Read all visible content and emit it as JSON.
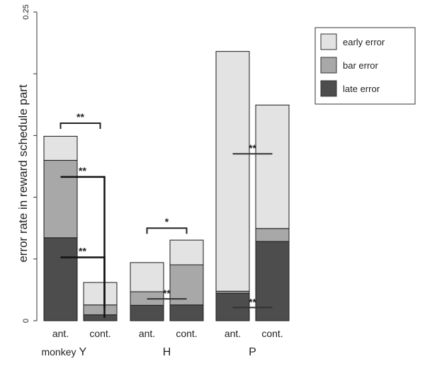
{
  "chart_data": {
    "type": "bar",
    "ylabel": "error rate in reward schedule part",
    "ylim": [
      0,
      0.25
    ],
    "ytick_labels": [
      "0",
      "0.25"
    ],
    "groups": [
      {
        "prefix": "monkey",
        "name": "Y"
      },
      {
        "prefix": "",
        "name": "H"
      },
      {
        "prefix": "",
        "name": "P"
      }
    ],
    "bars": [
      {
        "group": 0,
        "label": "ant.",
        "late": 0.0672,
        "bar": 0.0627,
        "early": 0.0195
      },
      {
        "group": 0,
        "label": "cont.",
        "late": 0.0048,
        "bar": 0.008,
        "early": 0.0182
      },
      {
        "group": 1,
        "label": "ant.",
        "late": 0.0125,
        "bar": 0.011,
        "early": 0.0236
      },
      {
        "group": 1,
        "label": "cont.",
        "late": 0.0128,
        "bar": 0.0325,
        "early": 0.02
      },
      {
        "group": 2,
        "label": "ant.",
        "late": 0.0223,
        "bar": 0.0016,
        "early": 0.1942
      },
      {
        "group": 2,
        "label": "cont.",
        "late": 0.0642,
        "bar": 0.0105,
        "early": 0.1
      }
    ],
    "series": [
      {
        "key": "early",
        "name": "early error",
        "color": "#e3e3e3"
      },
      {
        "key": "bar",
        "name": "bar error",
        "color": "#a8a8a8"
      },
      {
        "key": "late",
        "name": "late error",
        "color": "#4d4d4d"
      }
    ],
    "legend_position": "top-right",
    "annotations": [
      {
        "type": "bracket",
        "bars": [
          0,
          1
        ],
        "y": 0.16,
        "text": "**"
      },
      {
        "type": "step",
        "from_bar": 0,
        "to_bar": 1,
        "y_from": 0.1165,
        "y_to": 0.0102,
        "text": "**"
      },
      {
        "type": "step",
        "from_bar": 0,
        "to_bar": 1,
        "y_from": 0.0513,
        "y_to": 0.0023,
        "text": "**"
      },
      {
        "type": "bracket",
        "bars": [
          2,
          3
        ],
        "y": 0.075,
        "text": "*"
      },
      {
        "type": "line",
        "bars": [
          2,
          3
        ],
        "y": 0.0177,
        "text": "**"
      },
      {
        "type": "line",
        "bars": [
          4,
          5
        ],
        "y": 0.1352,
        "text": "**"
      },
      {
        "type": "line",
        "bars": [
          4,
          5
        ],
        "y": 0.0107,
        "text": "**",
        "text_color": "#ffffff"
      }
    ]
  }
}
